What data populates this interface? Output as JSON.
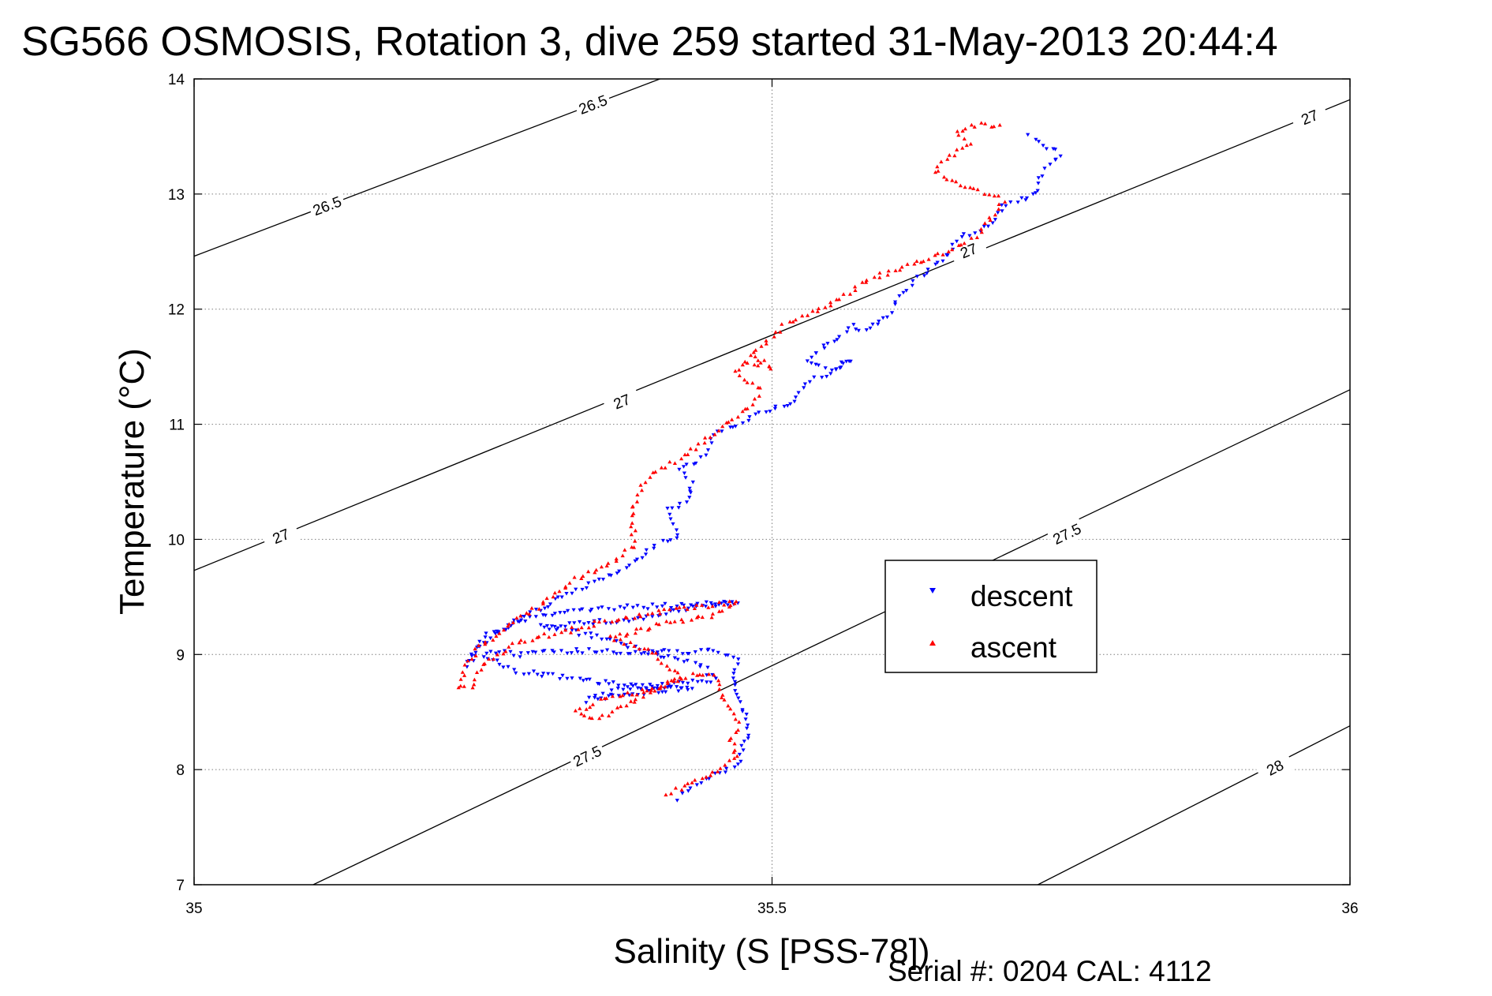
{
  "chart_data": {
    "type": "scatter",
    "title": "SG566 OSMOSIS, Rotation 3, dive 259 started 31-May-2013 20:44:4",
    "xlabel": "Salinity (S [PSS-78])",
    "ylabel": "Temperature (°C)",
    "xlim": [
      35,
      36
    ],
    "ylim": [
      7,
      14
    ],
    "xticks": [
      35,
      35.5,
      36
    ],
    "xtick_labels": [
      "35",
      "35.5",
      "36"
    ],
    "yticks": [
      7,
      8,
      9,
      10,
      11,
      12,
      13,
      14
    ],
    "ytick_labels": [
      "7",
      "8",
      "9",
      "10",
      "11",
      "12",
      "13",
      "14"
    ],
    "grid": true,
    "legend": {
      "placement": "center-right"
    },
    "series": [
      {
        "name": "descent",
        "marker": "down-triangle",
        "color": "#0000ff",
        "path": [
          [
            35.42,
            7.75
          ],
          [
            35.43,
            7.85
          ],
          [
            35.45,
            7.95
          ],
          [
            35.47,
            8.05
          ],
          [
            35.475,
            8.2
          ],
          [
            35.48,
            8.35
          ],
          [
            35.475,
            8.5
          ],
          [
            35.47,
            8.65
          ],
          [
            35.465,
            8.8
          ],
          [
            35.47,
            8.95
          ],
          [
            35.455,
            9.03
          ],
          [
            35.4,
            9.02
          ],
          [
            35.35,
            9.03
          ],
          [
            35.3,
            9.03
          ],
          [
            35.28,
            9.0
          ],
          [
            35.26,
            9.03
          ],
          [
            35.25,
            8.98
          ],
          [
            35.28,
            8.85
          ],
          [
            35.34,
            8.78
          ],
          [
            35.38,
            8.72
          ],
          [
            35.43,
            8.72
          ],
          [
            35.4,
            8.68
          ],
          [
            35.35,
            8.62
          ],
          [
            35.34,
            8.6
          ],
          [
            35.37,
            8.7
          ],
          [
            35.45,
            8.78
          ],
          [
            35.44,
            8.9
          ],
          [
            35.4,
            9.0
          ],
          [
            35.35,
            9.15
          ],
          [
            35.3,
            9.25
          ],
          [
            35.38,
            9.3
          ],
          [
            35.44,
            9.42
          ],
          [
            35.47,
            9.45
          ],
          [
            35.4,
            9.42
          ],
          [
            35.35,
            9.4
          ],
          [
            35.3,
            9.35
          ],
          [
            35.25,
            9.15
          ],
          [
            35.235,
            8.9
          ],
          [
            35.25,
            9.1
          ],
          [
            35.28,
            9.3
          ],
          [
            35.32,
            9.5
          ],
          [
            35.35,
            9.65
          ],
          [
            35.38,
            9.8
          ],
          [
            35.4,
            9.95
          ],
          [
            35.42,
            10.05
          ],
          [
            35.41,
            10.25
          ],
          [
            35.43,
            10.35
          ],
          [
            35.43,
            10.5
          ],
          [
            35.42,
            10.6
          ],
          [
            35.44,
            10.7
          ],
          [
            35.45,
            10.9
          ],
          [
            35.47,
            11.0
          ],
          [
            35.49,
            11.1
          ],
          [
            35.52,
            11.2
          ],
          [
            35.53,
            11.35
          ],
          [
            35.55,
            11.45
          ],
          [
            35.57,
            11.55
          ],
          [
            35.55,
            11.48
          ],
          [
            35.53,
            11.55
          ],
          [
            35.55,
            11.7
          ],
          [
            35.57,
            11.85
          ],
          [
            35.58,
            11.8
          ],
          [
            35.6,
            11.95
          ],
          [
            35.61,
            12.1
          ],
          [
            35.62,
            12.2
          ],
          [
            35.63,
            12.3
          ],
          [
            35.65,
            12.45
          ],
          [
            35.66,
            12.6
          ],
          [
            35.69,
            12.75
          ],
          [
            35.7,
            12.9
          ],
          [
            35.73,
            13.0
          ],
          [
            35.73,
            13.1
          ],
          [
            35.74,
            13.25
          ],
          [
            35.75,
            13.35
          ],
          [
            35.73,
            13.45
          ],
          [
            35.72,
            13.55
          ]
        ]
      },
      {
        "name": "ascent",
        "marker": "up-triangle",
        "color": "#ff0000",
        "path": [
          [
            35.41,
            7.78
          ],
          [
            35.43,
            7.9
          ],
          [
            35.45,
            7.98
          ],
          [
            35.47,
            8.1
          ],
          [
            35.465,
            8.25
          ],
          [
            35.47,
            8.4
          ],
          [
            35.46,
            8.55
          ],
          [
            35.455,
            8.7
          ],
          [
            35.45,
            8.82
          ],
          [
            35.43,
            8.82
          ],
          [
            35.4,
            8.7
          ],
          [
            35.35,
            8.6
          ],
          [
            35.33,
            8.5
          ],
          [
            35.35,
            8.45
          ],
          [
            35.38,
            8.6
          ],
          [
            35.42,
            8.8
          ],
          [
            35.4,
            9.0
          ],
          [
            35.36,
            9.15
          ],
          [
            35.4,
            9.25
          ],
          [
            35.45,
            9.35
          ],
          [
            35.47,
            9.45
          ],
          [
            35.42,
            9.4
          ],
          [
            35.36,
            9.3
          ],
          [
            35.32,
            9.2
          ],
          [
            35.28,
            9.1
          ],
          [
            35.25,
            8.9
          ],
          [
            35.24,
            8.72
          ],
          [
            35.23,
            8.7
          ],
          [
            35.235,
            8.9
          ],
          [
            35.25,
            9.1
          ],
          [
            35.28,
            9.3
          ],
          [
            35.31,
            9.5
          ],
          [
            35.33,
            9.65
          ],
          [
            35.36,
            9.8
          ],
          [
            35.38,
            9.95
          ],
          [
            35.38,
            10.15
          ],
          [
            35.38,
            10.3
          ],
          [
            35.39,
            10.5
          ],
          [
            35.4,
            10.6
          ],
          [
            35.42,
            10.7
          ],
          [
            35.44,
            10.85
          ],
          [
            35.46,
            11.0
          ],
          [
            35.48,
            11.15
          ],
          [
            35.49,
            11.3
          ],
          [
            35.47,
            11.45
          ],
          [
            35.475,
            11.55
          ],
          [
            35.5,
            11.5
          ],
          [
            35.48,
            11.6
          ],
          [
            35.5,
            11.75
          ],
          [
            35.51,
            11.85
          ],
          [
            35.53,
            11.95
          ],
          [
            35.56,
            12.1
          ],
          [
            35.58,
            12.25
          ],
          [
            35.61,
            12.35
          ],
          [
            35.64,
            12.45
          ],
          [
            35.66,
            12.55
          ],
          [
            35.68,
            12.65
          ],
          [
            35.69,
            12.8
          ],
          [
            35.7,
            12.95
          ],
          [
            35.66,
            13.1
          ],
          [
            35.64,
            13.2
          ],
          [
            35.65,
            13.3
          ],
          [
            35.67,
            13.45
          ],
          [
            35.66,
            13.55
          ],
          [
            35.68,
            13.6
          ],
          [
            35.7,
            13.6
          ]
        ]
      }
    ],
    "contours": [
      {
        "label": "26.5",
        "points": [
          [
            35.0,
            12.46
          ],
          [
            35.403,
            14.0
          ]
        ],
        "label_at": [
          [
            35.115,
            12.9
          ],
          [
            35.345,
            13.78
          ]
        ]
      },
      {
        "label": "27",
        "points": [
          [
            35.0,
            9.73
          ],
          [
            36.0,
            13.82
          ]
        ],
        "label_at": [
          [
            35.075,
            10.03
          ],
          [
            35.37,
            11.2
          ],
          [
            35.67,
            12.51
          ],
          [
            35.965,
            13.67
          ]
        ]
      },
      {
        "label": "27.5",
        "points": [
          [
            35.103,
            7.0
          ],
          [
            36.0,
            11.3
          ]
        ],
        "label_at": [
          [
            35.34,
            8.12
          ],
          [
            35.755,
            10.05
          ]
        ]
      },
      {
        "label": "28",
        "points": [
          [
            35.73,
            7.0
          ],
          [
            36.0,
            8.38
          ]
        ],
        "label_at": [
          [
            35.935,
            8.02
          ]
        ]
      }
    ]
  },
  "footer": {
    "serial": "Serial #: 0204  CAL: 4112"
  }
}
